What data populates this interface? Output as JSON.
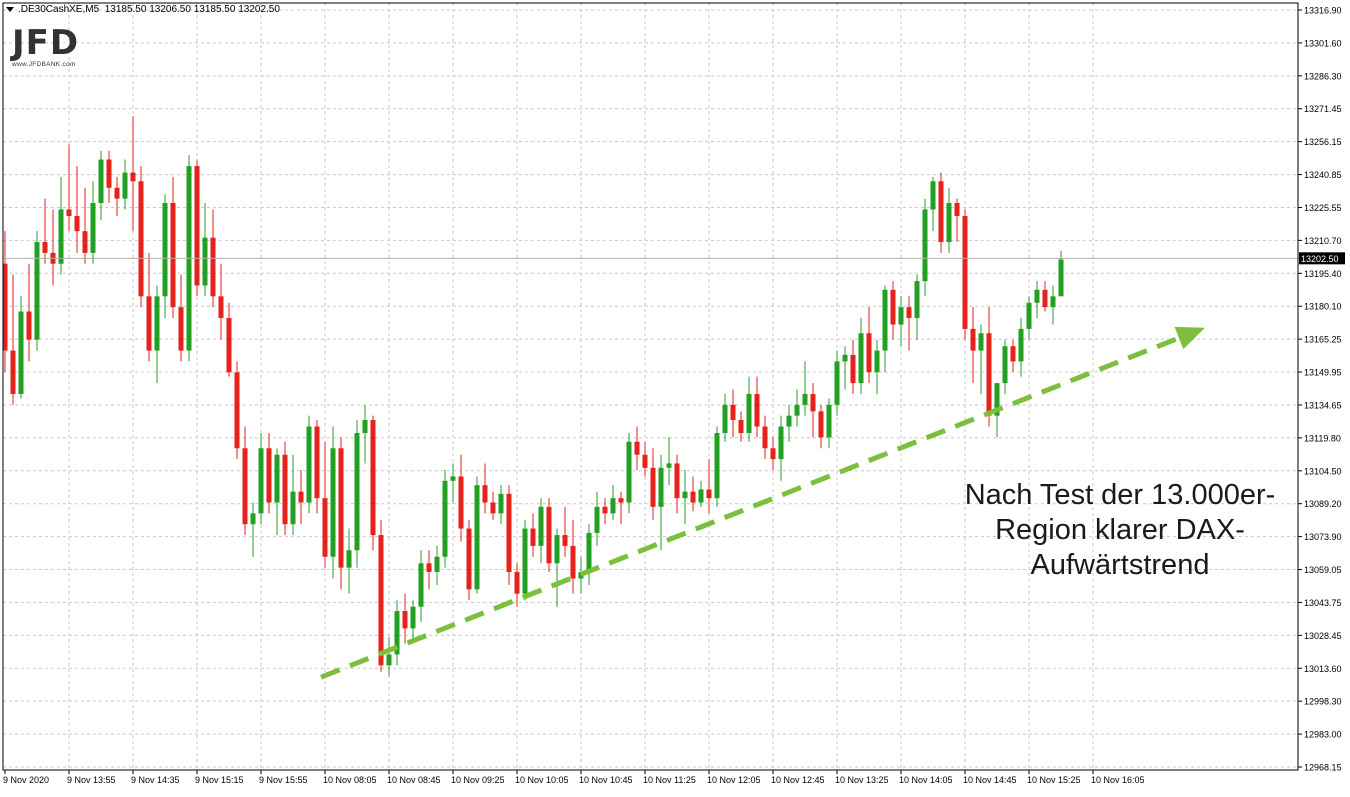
{
  "chart_data": {
    "type": "candlestick",
    "header": {
      "symbol": ".DE30CashXE,M5",
      "ohlc": [
        "13185.50",
        "13206.50",
        "13185.50",
        "13202.50"
      ]
    },
    "logo": {
      "text": "JFD",
      "subtext": "www.JFDBANK.com"
    },
    "y_ticks": [
      "13316.90",
      "13301.60",
      "13286.30",
      "13271.45",
      "13256.15",
      "13240.85",
      "13225.55",
      "13210.70",
      "13195.40",
      "13180.10",
      "13165.25",
      "13149.95",
      "13134.65",
      "13119.80",
      "13104.50",
      "13089.20",
      "13073.90",
      "13059.05",
      "13043.75",
      "13028.45",
      "13013.60",
      "12998.30",
      "12983.00",
      "12968.15"
    ],
    "ylim": [
      12968.15,
      13316.9
    ],
    "current_price": "13202.50",
    "x_ticks": [
      "9 Nov 2020",
      "9 Nov 13:55",
      "9 Nov 14:35",
      "9 Nov 15:15",
      "9 Nov 15:55",
      "10 Nov 08:05",
      "10 Nov 08:45",
      "10 Nov 09:25",
      "10 Nov 10:05",
      "10 Nov 10:45",
      "10 Nov 11:25",
      "10 Nov 12:05",
      "10 Nov 12:45",
      "10 Nov 13:25",
      "10 Nov 14:05",
      "10 Nov 14:45",
      "10 Nov 15:25",
      "10 Nov 16:05"
    ],
    "candles": [
      [
        13200,
        13215,
        13150,
        13160
      ],
      [
        13160,
        13195,
        13135,
        13140
      ],
      [
        13140,
        13185,
        13138,
        13178
      ],
      [
        13178,
        13200,
        13155,
        13165
      ],
      [
        13165,
        13215,
        13160,
        13210
      ],
      [
        13210,
        13230,
        13200,
        13205
      ],
      [
        13205,
        13225,
        13190,
        13200
      ],
      [
        13200,
        13240,
        13195,
        13225
      ],
      [
        13225,
        13255,
        13215,
        13222
      ],
      [
        13222,
        13245,
        13205,
        13215
      ],
      [
        13215,
        13235,
        13200,
        13205
      ],
      [
        13205,
        13238,
        13200,
        13228
      ],
      [
        13228,
        13252,
        13220,
        13248
      ],
      [
        13248,
        13252,
        13228,
        13235
      ],
      [
        13235,
        13240,
        13222,
        13230
      ],
      [
        13230,
        13248,
        13225,
        13242
      ],
      [
        13242,
        13268,
        13215,
        13238
      ],
      [
        13238,
        13245,
        13180,
        13185
      ],
      [
        13185,
        13205,
        13155,
        13160
      ],
      [
        13160,
        13190,
        13145,
        13185
      ],
      [
        13185,
        13232,
        13175,
        13228
      ],
      [
        13228,
        13240,
        13175,
        13180
      ],
      [
        13180,
        13195,
        13155,
        13160
      ],
      [
        13160,
        13250,
        13155,
        13245
      ],
      [
        13245,
        13248,
        13185,
        13190
      ],
      [
        13190,
        13228,
        13185,
        13212
      ],
      [
        13212,
        13225,
        13180,
        13185
      ],
      [
        13185,
        13200,
        13165,
        13175
      ],
      [
        13175,
        13182,
        13148,
        13150
      ],
      [
        13150,
        13155,
        13110,
        13115
      ],
      [
        13115,
        13125,
        13075,
        13080
      ],
      [
        13080,
        13090,
        13065,
        13085
      ],
      [
        13085,
        13122,
        13080,
        13115
      ],
      [
        13115,
        13122,
        13085,
        13090
      ],
      [
        13090,
        13115,
        13075,
        13112
      ],
      [
        13112,
        13118,
        13075,
        13080
      ],
      [
        13080,
        13112,
        13075,
        13095
      ],
      [
        13095,
        13105,
        13080,
        13090
      ],
      [
        13090,
        13130,
        13085,
        13125
      ],
      [
        13125,
        13128,
        13085,
        13092
      ],
      [
        13092,
        13118,
        13060,
        13065
      ],
      [
        13065,
        13125,
        13055,
        13115
      ],
      [
        13115,
        13120,
        13050,
        13060
      ],
      [
        13060,
        13078,
        13048,
        13068
      ],
      [
        13068,
        13128,
        13060,
        13122
      ],
      [
        13122,
        13135,
        13108,
        13128
      ],
      [
        13128,
        13130,
        13068,
        13075
      ],
      [
        13075,
        13082,
        13012,
        13015
      ],
      [
        13015,
        13028,
        13010,
        13020
      ],
      [
        13020,
        13045,
        13015,
        13040
      ],
      [
        13040,
        13048,
        13025,
        13032
      ],
      [
        13032,
        13045,
        13025,
        13042
      ],
      [
        13042,
        13068,
        13035,
        13062
      ],
      [
        13062,
        13068,
        13050,
        13058
      ],
      [
        13058,
        13070,
        13052,
        13065
      ],
      [
        13065,
        13105,
        13060,
        13100
      ],
      [
        13100,
        13108,
        13090,
        13102
      ],
      [
        13102,
        13112,
        13072,
        13078
      ],
      [
        13078,
        13082,
        13045,
        13050
      ],
      [
        13050,
        13102,
        13048,
        13098
      ],
      [
        13098,
        13108,
        13085,
        13090
      ],
      [
        13090,
        13095,
        13082,
        13085
      ],
      [
        13085,
        13098,
        13080,
        13094
      ],
      [
        13094,
        13098,
        13052,
        13058
      ],
      [
        13058,
        13062,
        13042,
        13048
      ],
      [
        13048,
        13082,
        13045,
        13078
      ],
      [
        13078,
        13085,
        13065,
        13070
      ],
      [
        13070,
        13092,
        13062,
        13088
      ],
      [
        13088,
        13092,
        13058,
        13062
      ],
      [
        13062,
        13078,
        13042,
        13075
      ],
      [
        13075,
        13088,
        13065,
        13070
      ],
      [
        13070,
        13082,
        13048,
        13055
      ],
      [
        13055,
        13065,
        13048,
        13058
      ],
      [
        13058,
        13080,
        13052,
        13076
      ],
      [
        13076,
        13095,
        13070,
        13088
      ],
      [
        13088,
        13092,
        13080,
        13085
      ],
      [
        13085,
        13098,
        13082,
        13092
      ],
      [
        13092,
        13095,
        13080,
        13090
      ],
      [
        13090,
        13122,
        13085,
        13118
      ],
      [
        13118,
        13125,
        13105,
        13112
      ],
      [
        13112,
        13118,
        13102,
        13106
      ],
      [
        13106,
        13115,
        13082,
        13088
      ],
      [
        13088,
        13112,
        13068,
        13106
      ],
      [
        13106,
        13120,
        13098,
        13108
      ],
      [
        13108,
        13112,
        13085,
        13092
      ],
      [
        13092,
        13105,
        13080,
        13095
      ],
      [
        13095,
        13102,
        13086,
        13090
      ],
      [
        13090,
        13100,
        13088,
        13096
      ],
      [
        13096,
        13110,
        13085,
        13092
      ],
      [
        13092,
        13125,
        13088,
        13122
      ],
      [
        13122,
        13140,
        13118,
        13135
      ],
      [
        13135,
        13142,
        13120,
        13128
      ],
      [
        13128,
        13132,
        13118,
        13122
      ],
      [
        13122,
        13148,
        13118,
        13140
      ],
      [
        13140,
        13148,
        13120,
        13125
      ],
      [
        13125,
        13130,
        13110,
        13115
      ],
      [
        13115,
        13120,
        13105,
        13110
      ],
      [
        13110,
        13130,
        13100,
        13125
      ],
      [
        13125,
        13135,
        13118,
        13130
      ],
      [
        13130,
        13142,
        13125,
        13135
      ],
      [
        13135,
        13155,
        13130,
        13140
      ],
      [
        13140,
        13145,
        13120,
        13132
      ],
      [
        13132,
        13135,
        13115,
        13120
      ],
      [
        13120,
        13138,
        13115,
        13135
      ],
      [
        13135,
        13160,
        13130,
        13155
      ],
      [
        13155,
        13162,
        13142,
        13158
      ],
      [
        13158,
        13165,
        13140,
        13145
      ],
      [
        13145,
        13175,
        13140,
        13168
      ],
      [
        13168,
        13180,
        13145,
        13150
      ],
      [
        13150,
        13165,
        13140,
        13160
      ],
      [
        13160,
        13190,
        13150,
        13188
      ],
      [
        13188,
        13192,
        13165,
        13172
      ],
      [
        13172,
        13185,
        13162,
        13180
      ],
      [
        13180,
        13185,
        13160,
        13175
      ],
      [
        13175,
        13195,
        13165,
        13192
      ],
      [
        13192,
        13230,
        13185,
        13225
      ],
      [
        13225,
        13240,
        13215,
        13238
      ],
      [
        13238,
        13242,
        13205,
        13210
      ],
      [
        13210,
        13235,
        13205,
        13228
      ],
      [
        13228,
        13230,
        13210,
        13222
      ],
      [
        13222,
        13225,
        13165,
        13170
      ],
      [
        13170,
        13180,
        13145,
        13160
      ],
      [
        13160,
        13172,
        13140,
        13168
      ],
      [
        13168,
        13180,
        13125,
        13130
      ],
      [
        13130,
        13145,
        13120,
        13145
      ],
      [
        13145,
        13165,
        13140,
        13162
      ],
      [
        13162,
        13165,
        13150,
        13155
      ],
      [
        13155,
        13175,
        13148,
        13170
      ],
      [
        13170,
        13185,
        13165,
        13182
      ],
      [
        13182,
        13192,
        13175,
        13188
      ],
      [
        13188,
        13192,
        13178,
        13180
      ],
      [
        13180,
        13190,
        13172,
        13185
      ],
      [
        13185,
        13206,
        13185,
        13202
      ]
    ],
    "trend_arrow": {
      "from": [
        "10 Nov 08:05",
        13010
      ],
      "to": [
        "10 Nov 16:40",
        13165
      ]
    },
    "annotation": [
      "Nach Test der 13.000er-",
      "Region klarer DAX-",
      "Aufwärtstrend"
    ],
    "colors": {
      "up": "#22a022",
      "down": "#e8201a",
      "arrow": "#7bbf3c",
      "grid": "#c8c8c8"
    }
  }
}
